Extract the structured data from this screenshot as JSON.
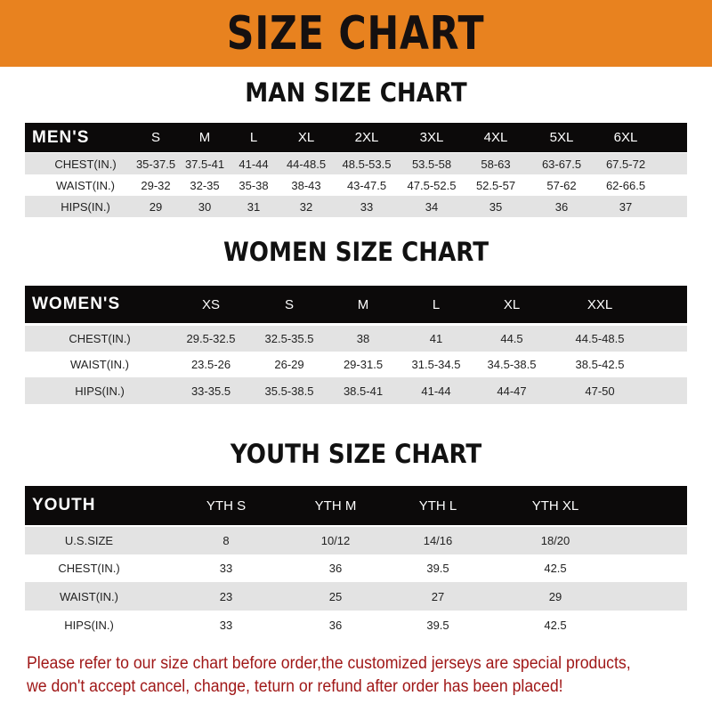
{
  "banner": {
    "title": "SIZE CHART",
    "color": "#e8821f"
  },
  "men": {
    "title": "MAN SIZE CHART",
    "header": [
      "MEN'S",
      "S",
      "M",
      "L",
      "XL",
      "2XL",
      "3XL",
      "4XL",
      "5XL",
      "6XL"
    ],
    "rows": [
      [
        "CHEST(IN.)",
        "35-37.5",
        "37.5-41",
        "41-44",
        "44-48.5",
        "48.5-53.5",
        "53.5-58",
        "58-63",
        "63-67.5",
        "67.5-72"
      ],
      [
        "WAIST(IN.)",
        "29-32",
        "32-35",
        "35-38",
        "38-43",
        "43-47.5",
        "47.5-52.5",
        "52.5-57",
        "57-62",
        "62-66.5"
      ],
      [
        "HIPS(IN.)",
        "29",
        "30",
        "31",
        "32",
        "33",
        "34",
        "35",
        "36",
        "37"
      ]
    ]
  },
  "women": {
    "title": "WOMEN SIZE CHART",
    "header": [
      "WOMEN'S",
      "XS",
      "S",
      "M",
      "L",
      "XL",
      "XXL"
    ],
    "rows": [
      [
        "CHEST(IN.)",
        "29.5-32.5",
        "32.5-35.5",
        "38",
        "41",
        "44.5",
        "44.5-48.5"
      ],
      [
        "WAIST(IN.)",
        "23.5-26",
        "26-29",
        "29-31.5",
        "31.5-34.5",
        "34.5-38.5",
        "38.5-42.5"
      ],
      [
        "HIPS(IN.)",
        "33-35.5",
        "35.5-38.5",
        "38.5-41",
        "41-44",
        "44-47",
        "47-50"
      ]
    ]
  },
  "youth": {
    "title": "YOUTH SIZE CHART",
    "header": [
      "YOUTH",
      "YTH S",
      "YTH M",
      "YTH L",
      "YTH XL"
    ],
    "rows": [
      [
        "U.S.SIZE",
        "8",
        "10/12",
        "14/16",
        "18/20"
      ],
      [
        "CHEST(IN.)",
        "33",
        "36",
        "39.5",
        "42.5"
      ],
      [
        "WAIST(IN.)",
        "23",
        "25",
        "27",
        "29"
      ],
      [
        "HIPS(IN.)",
        "33",
        "36",
        "39.5",
        "42.5"
      ]
    ]
  },
  "notice": {
    "line1": "Please refer to our size chart before order,the customized jerseys are special products,",
    "line2": "we don't accept cancel, change, teturn or refund after order has been placed!",
    "color": "#a01818"
  }
}
